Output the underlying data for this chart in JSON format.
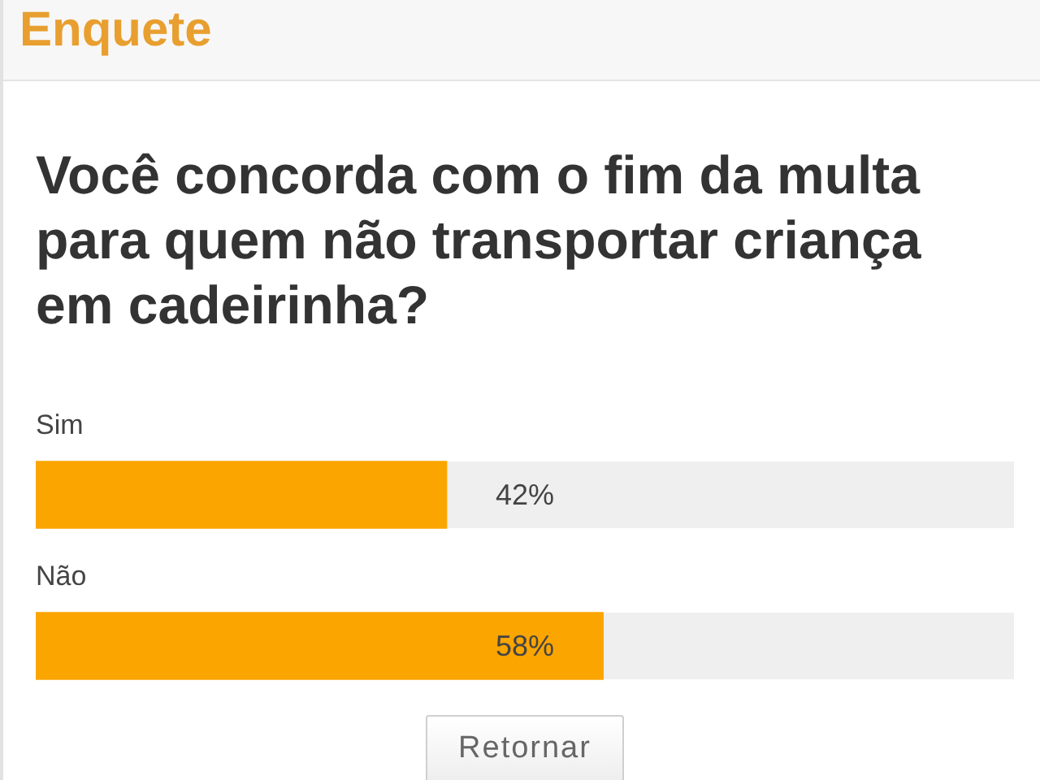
{
  "chart_data": {
    "type": "bar",
    "title": "Enquete",
    "subtitle": "Você concorda com o fim da multa para quem não transportar criança em cadeirinha?",
    "categories": [
      "Sim",
      "Não"
    ],
    "values": [
      42,
      58
    ],
    "color": "#fba500",
    "orientation": "horizontal",
    "xlim": [
      0,
      100
    ],
    "value_labels": [
      "42%",
      "58%"
    ],
    "tick_labels": "y",
    "annotations": [
      "Retornar"
    ]
  }
}
